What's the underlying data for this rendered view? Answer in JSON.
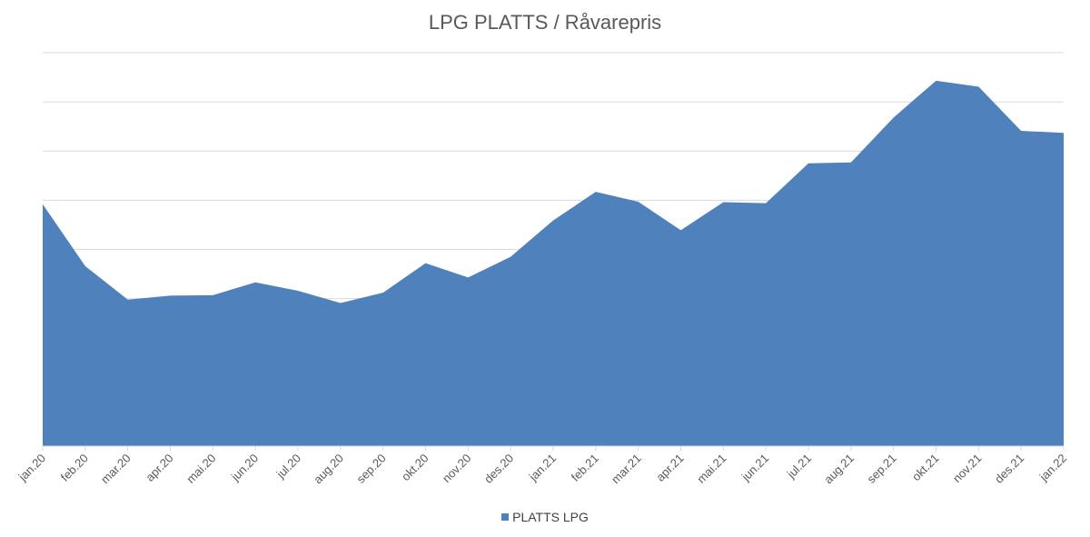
{
  "chart_data": {
    "type": "area",
    "title": "LPG PLATTS / Råvarepris",
    "xlabel": "",
    "ylabel": "",
    "categories": [
      "jan.20",
      "feb.20",
      "mar.20",
      "apr.20",
      "mai.20",
      "jun.20",
      "jul.20",
      "aug.20",
      "sep.20",
      "okt.20",
      "nov.20",
      "des.20",
      "jan.21",
      "feb.21",
      "mar.21",
      "apr.21",
      "mai.21",
      "jun.21",
      "jul.21",
      "aug.21",
      "sep.21",
      "okt.21",
      "nov.21",
      "des.21",
      "jan.22"
    ],
    "series": [
      {
        "name": "PLATTS LPG",
        "color": "#4F81BD",
        "values": [
          49.2,
          36.6,
          29.8,
          30.6,
          30.7,
          33.3,
          31.6,
          29.1,
          31.2,
          37.2,
          34.3,
          38.5,
          45.9,
          51.7,
          49.7,
          43.9,
          49.6,
          49.4,
          57.5,
          57.7,
          66.8,
          74.3,
          73.1,
          64.1,
          63.7
        ]
      }
    ],
    "ylim": [
      0,
      80
    ],
    "y_gridlines": [
      10,
      20,
      30,
      40,
      50,
      60,
      70,
      80
    ],
    "y_tick_labels_visible": false,
    "grid": true,
    "legend_position": "bottom"
  }
}
